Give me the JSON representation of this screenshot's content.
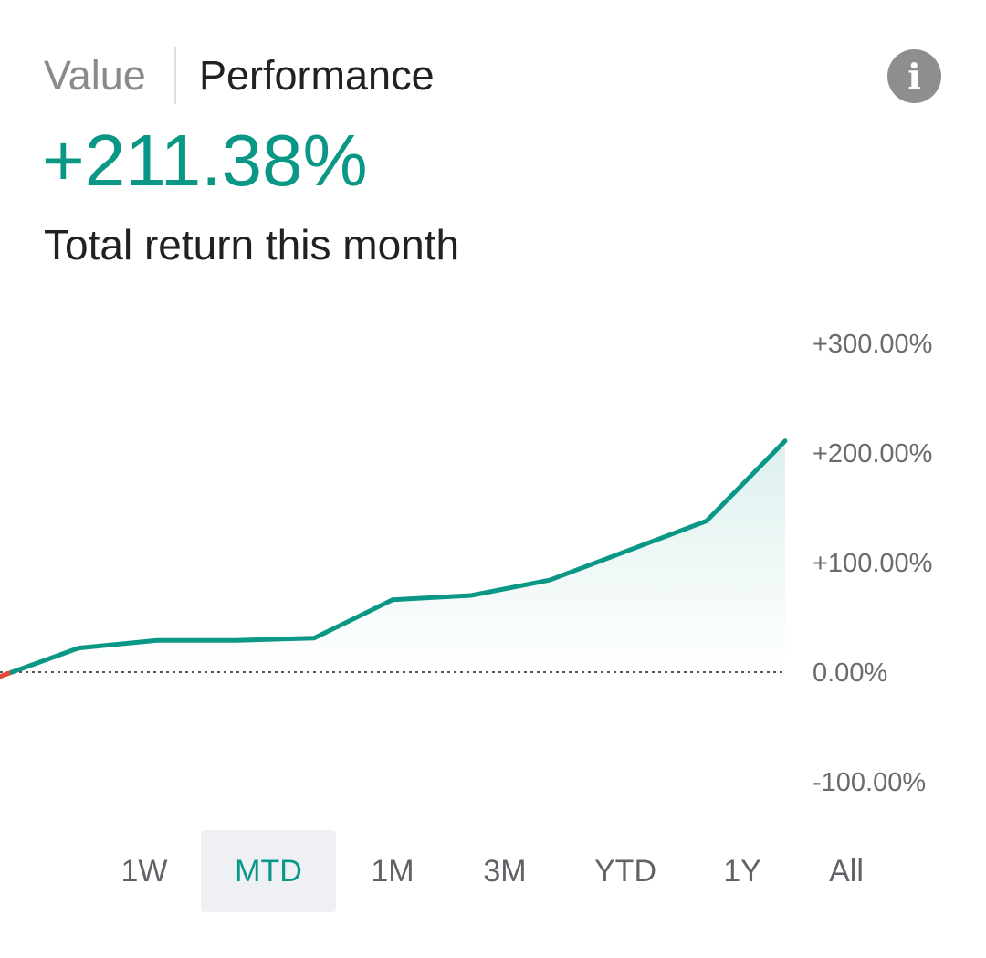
{
  "tabs": {
    "value_label": "Value",
    "performance_label": "Performance",
    "selected": "Performance"
  },
  "info_icon": "info-icon",
  "summary": {
    "total_return": "+211.38%",
    "subtitle": "Total return this month"
  },
  "chart_data": {
    "type": "area",
    "y": [
      -4,
      22,
      29,
      29,
      31,
      66,
      70,
      84,
      111,
      138,
      211
    ],
    "ylim": [
      -100,
      300
    ],
    "yticks": [
      "+300.00%",
      "+200.00%",
      "+100.00%",
      "0.00%",
      "-100.00%"
    ],
    "ytick_values": [
      300,
      200,
      100,
      0,
      -100
    ],
    "baseline": 0,
    "grid": false,
    "colors": {
      "positive": "#0a9786",
      "negative": "#e04a3a",
      "baseline": "#555555"
    }
  },
  "ranges": {
    "options": [
      "1W",
      "MTD",
      "1M",
      "3M",
      "YTD",
      "1Y",
      "All"
    ],
    "selected": "MTD"
  }
}
